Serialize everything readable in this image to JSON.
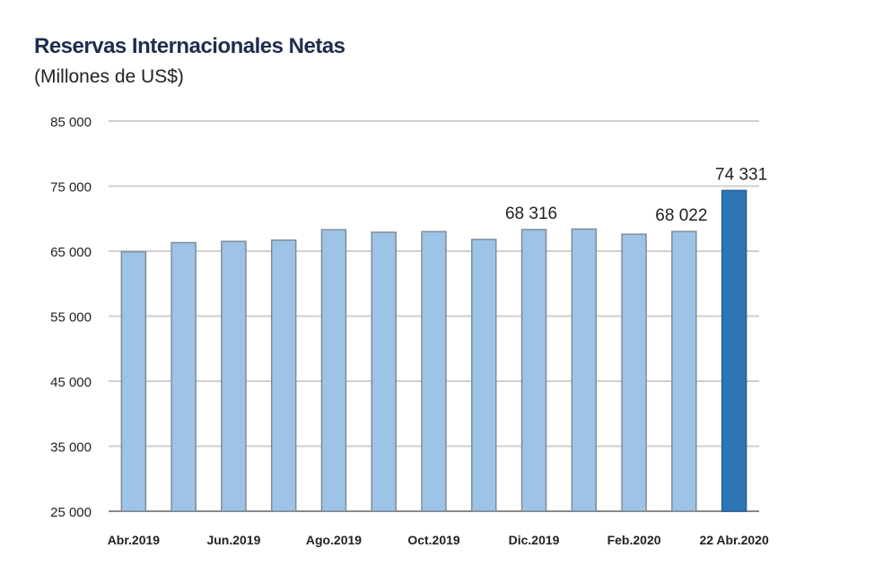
{
  "chart_data": {
    "type": "bar",
    "title": "Reservas Internacionales Netas",
    "subtitle": "(Millones de US$)",
    "xlabel": "",
    "ylabel": "",
    "ylim": [
      25000,
      85000
    ],
    "yticks": [
      25000,
      35000,
      45000,
      55000,
      65000,
      75000,
      85000
    ],
    "ytick_labels": [
      "25 000",
      "35 000",
      "45 000",
      "55 000",
      "65 000",
      "75 000",
      "85 000"
    ],
    "grid": true,
    "categories": [
      "Abr.2019",
      "",
      "Jun.2019",
      "",
      "Ago.2019",
      "",
      "Oct.2019",
      "",
      "Dic.2019",
      "",
      "Feb.2020",
      "",
      "22 Abr.2020"
    ],
    "values": [
      64900,
      66300,
      66500,
      66700,
      68300,
      67900,
      68000,
      66800,
      68316,
      68400,
      67600,
      68022,
      74331
    ],
    "data_labels": {
      "8": "68 316",
      "11": "68 022",
      "12": "74 331"
    },
    "colors": {
      "bar": "#9dc3e6",
      "bar_border": "#7f8c99",
      "highlight": "#2e75b6",
      "grid": "#cfcfcf"
    }
  }
}
